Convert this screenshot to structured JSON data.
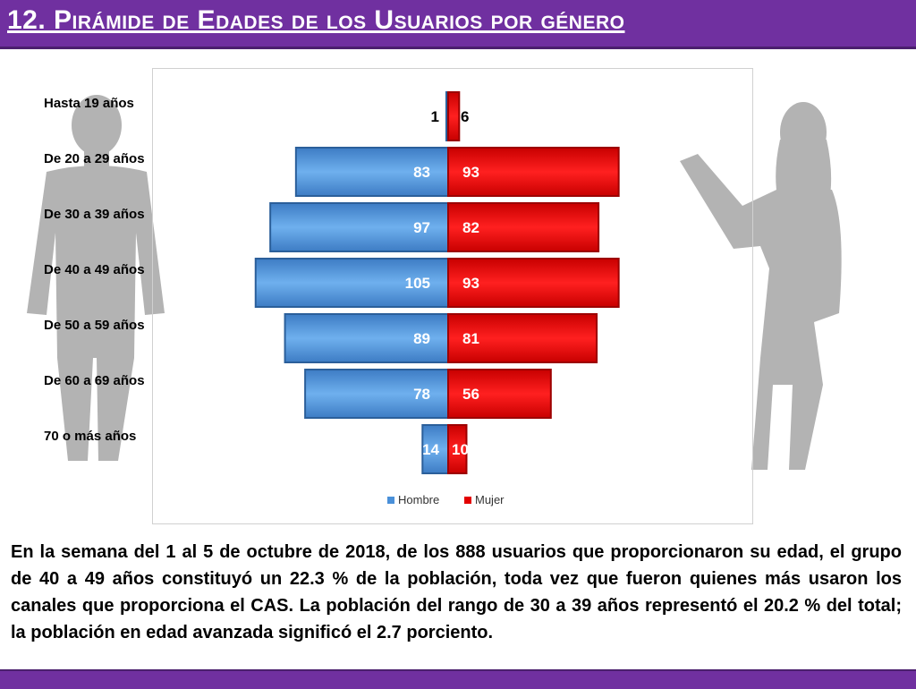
{
  "header": {
    "title": "12. Pirámide de Edades de los Usuarios por género"
  },
  "chart_data": {
    "type": "bar",
    "orientation": "horizontal-pyramid",
    "categories": [
      "Hasta 19 años",
      "De 20 a 29 años",
      "De 30 a 39 años",
      "De 40 a 49 años",
      "De 50 a 59 años",
      "De 60 a 69 años",
      "70 o más años"
    ],
    "series": [
      {
        "name": "Hombre",
        "values": [
          1,
          83,
          97,
          105,
          89,
          78,
          14
        ],
        "color": "#4a90d9",
        "side": "left"
      },
      {
        "name": "Mujer",
        "values": [
          6,
          93,
          82,
          93,
          81,
          56,
          10
        ],
        "color": "#e30000",
        "side": "right"
      }
    ],
    "legend_position": "bottom-center",
    "grid": false,
    "xlim": [
      -110,
      110
    ]
  },
  "summary": {
    "text": "En la semana del 1 al 5 de octubre de 2018, de los 888 usuarios que proporcionaron su edad, el grupo de 40 a 49 años constituyó un 22.3 % de la población, toda vez que fueron quienes más usaron los canales que proporciona el CAS. La población del rango de 30 a 39 años representó el 20.2 % del total; la población en edad avanzada significó el 2.7 porciento."
  },
  "colors": {
    "header": "#7030a0",
    "hombre": "#4a90d9",
    "mujer": "#e30000",
    "silhouette": "#b3b3b3"
  },
  "icons": [
    "man-silhouette-icon",
    "woman-silhouette-icon"
  ]
}
